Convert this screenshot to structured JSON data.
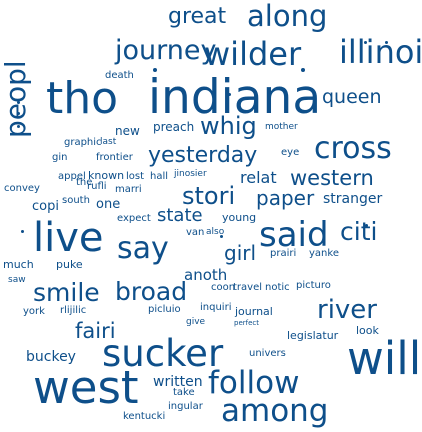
{
  "colors": {
    "text": "#0e4f8a",
    "background": "#ffffff"
  },
  "words": [
    {
      "text": "great"
    },
    {
      "text": "along"
    },
    {
      "text": "journey"
    },
    {
      "text": "wilder"
    },
    {
      "text": "illinoi"
    },
    {
      "text": "death"
    },
    {
      "text": "peopl"
    },
    {
      "text": "tho"
    },
    {
      "text": "indiana"
    },
    {
      "text": "queen"
    },
    {
      "text": "mother"
    },
    {
      "text": "whig"
    },
    {
      "text": "preach"
    },
    {
      "text": "new"
    },
    {
      "text": "graphic"
    },
    {
      "text": "last"
    },
    {
      "text": "gin"
    },
    {
      "text": "frontier"
    },
    {
      "text": "yesterday"
    },
    {
      "text": "eye"
    },
    {
      "text": "cross"
    },
    {
      "text": "appel"
    },
    {
      "text": "known"
    },
    {
      "text": "lost"
    },
    {
      "text": "hall"
    },
    {
      "text": "jinosier"
    },
    {
      "text": "relat"
    },
    {
      "text": "western"
    },
    {
      "text": "convey"
    },
    {
      "text": "rufli"
    },
    {
      "text": "marri"
    },
    {
      "text": "stori"
    },
    {
      "text": "paper"
    },
    {
      "text": "stranger"
    },
    {
      "text": "copi"
    },
    {
      "text": "south"
    },
    {
      "text": "one"
    },
    {
      "text": "expect"
    },
    {
      "text": "state"
    },
    {
      "text": "young"
    },
    {
      "text": "live"
    },
    {
      "text": "say"
    },
    {
      "text": "van"
    },
    {
      "text": "also"
    },
    {
      "text": "said"
    },
    {
      "text": "citi"
    },
    {
      "text": "much"
    },
    {
      "text": "puke"
    },
    {
      "text": "girl"
    },
    {
      "text": "prairi"
    },
    {
      "text": "yanke"
    },
    {
      "text": "saw"
    },
    {
      "text": "anoth"
    },
    {
      "text": "smile"
    },
    {
      "text": "broad"
    },
    {
      "text": "coon"
    },
    {
      "text": "travel"
    },
    {
      "text": "notic"
    },
    {
      "text": "picturo"
    },
    {
      "text": "york"
    },
    {
      "text": "rlijilic"
    },
    {
      "text": "picluio"
    },
    {
      "text": "inquiri"
    },
    {
      "text": "journal"
    },
    {
      "text": "river"
    },
    {
      "text": "give"
    },
    {
      "text": "perfect"
    },
    {
      "text": "fairi"
    },
    {
      "text": "legislatur"
    },
    {
      "text": "look"
    },
    {
      "text": "buckey"
    },
    {
      "text": "sucker"
    },
    {
      "text": "univers"
    },
    {
      "text": "will"
    },
    {
      "text": "written"
    },
    {
      "text": "west"
    },
    {
      "text": "follow"
    },
    {
      "text": "take"
    },
    {
      "text": "ingular"
    },
    {
      "text": "among"
    },
    {
      "text": "kentucki"
    },
    {
      "text": "the"
    }
  ]
}
